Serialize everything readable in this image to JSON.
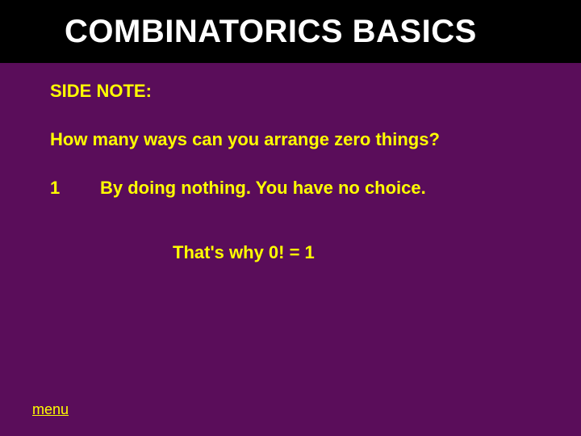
{
  "slide": {
    "background_color": "#5a0d5a",
    "title_bar_color": "#000000",
    "text_color": "#ffff00",
    "title_color": "#ffffff",
    "title": "COMBINATORICS BASICS",
    "side_note_label": "SIDE NOTE:",
    "question": "How many ways can you arrange zero things?",
    "answer_number": "1",
    "answer_text": "By doing nothing.  You have no choice.",
    "conclusion": "That's why 0! = 1",
    "menu_label": "menu",
    "title_fontsize": 40,
    "body_fontsize": 22,
    "menu_fontsize": 18
  }
}
